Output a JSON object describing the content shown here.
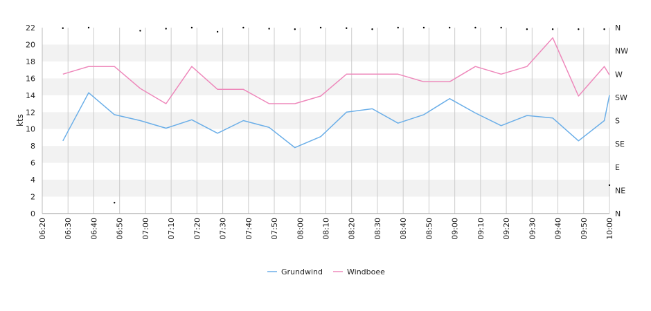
{
  "chart_data": {
    "type": "line",
    "x": [
      "06:28",
      "06:38",
      "06:48",
      "06:58",
      "07:08",
      "07:18",
      "07:28",
      "07:38",
      "07:48",
      "07:58",
      "08:08",
      "08:18",
      "08:28",
      "08:38",
      "08:48",
      "08:58",
      "09:08",
      "09:18",
      "09:28",
      "09:38",
      "09:48",
      "09:58",
      "10:00"
    ],
    "series": [
      {
        "name": "Grundwind",
        "color": "#6aaee8",
        "values": [
          8.6,
          14.3,
          11.7,
          11.0,
          10.1,
          11.1,
          9.5,
          11.0,
          10.2,
          7.8,
          9.1,
          12.0,
          12.4,
          10.7,
          11.7,
          13.6,
          11.9,
          10.4,
          11.6,
          11.3,
          8.6,
          11.0,
          14.0
        ]
      },
      {
        "name": "Windboee",
        "color": "#ee88bb",
        "values": [
          16.5,
          17.4,
          17.4,
          14.8,
          13.0,
          17.4,
          14.7,
          14.7,
          13.0,
          13.0,
          13.9,
          16.5,
          16.5,
          16.5,
          15.6,
          15.6,
          17.4,
          16.5,
          17.4,
          20.8,
          13.9,
          17.4,
          16.4
        ]
      }
    ],
    "direction_dots": {
      "x": [
        "06:28",
        "06:38",
        "06:48",
        "06:58",
        "07:08",
        "07:18",
        "07:28",
        "07:38",
        "07:48",
        "07:58",
        "08:08",
        "08:18",
        "08:28",
        "08:38",
        "08:48",
        "08:58",
        "09:08",
        "09:18",
        "09:28",
        "09:38",
        "09:48",
        "09:58",
        "10:00"
      ],
      "degrees": [
        359,
        360,
        21,
        354,
        358,
        360,
        352,
        360,
        358,
        357,
        360,
        359,
        357,
        360,
        360,
        360,
        360,
        360,
        357,
        357,
        357,
        357,
        55
      ]
    },
    "x_range": [
      "06:20",
      "10:00"
    ],
    "x_ticks": [
      "06:20",
      "06:30",
      "06:40",
      "06:50",
      "07:00",
      "07:10",
      "07:20",
      "07:30",
      "07:40",
      "07:50",
      "08:00",
      "08:10",
      "08:20",
      "08:30",
      "08:40",
      "08:50",
      "09:00",
      "09:10",
      "09:20",
      "09:30",
      "09:40",
      "09:50",
      "10:00"
    ],
    "ylim": [
      0,
      22
    ],
    "y_ticks": [
      0,
      2,
      4,
      6,
      8,
      10,
      12,
      14,
      16,
      18,
      20,
      22
    ],
    "ylabel": "kts",
    "right_axis_labels": [
      "N",
      "NE",
      "E",
      "SE",
      "S",
      "SW",
      "W",
      "NW",
      "N"
    ],
    "grid": true,
    "legend_position": "bottom-center"
  }
}
